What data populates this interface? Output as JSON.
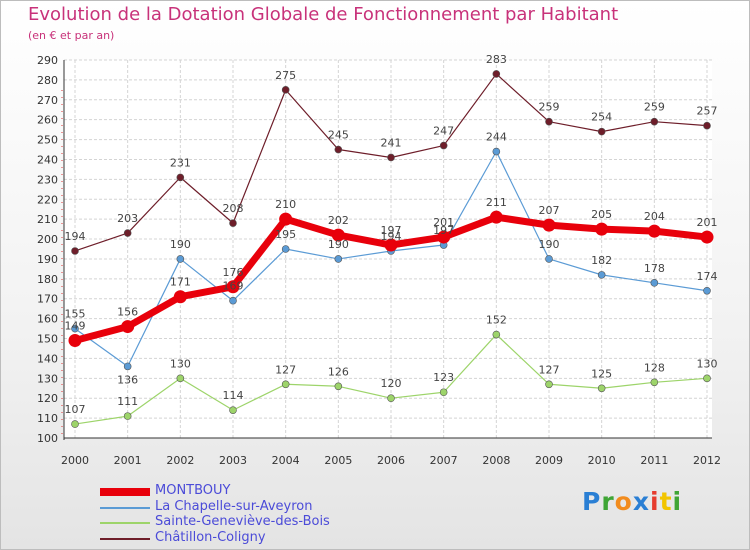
{
  "header": {
    "title": "Evolution de la Dotation Globale de Fonctionnement par Habitant",
    "subtitle": "(en € et par an)"
  },
  "chart_data": {
    "type": "line",
    "title": "Evolution de la Dotation Globale de Fonctionnement par Habitant",
    "subtitle": "(en € et par an)",
    "xlabel": "",
    "ylabel": "",
    "x": [
      "2000",
      "2001",
      "2002",
      "2003",
      "2004",
      "2005",
      "2006",
      "2007",
      "2008",
      "2009",
      "2010",
      "2011",
      "2012"
    ],
    "ylim": [
      100,
      290
    ],
    "ytick_step": 10,
    "grid": true,
    "legend_position": "bottom-left",
    "series": [
      {
        "name": "MONTBOUY",
        "color": "#e8000b",
        "values": [
          149,
          156,
          171,
          176,
          210,
          202,
          197,
          201,
          211,
          207,
          205,
          204,
          201
        ]
      },
      {
        "name": "La Chapelle-sur-Aveyron",
        "color": "#5b9bd5",
        "values": [
          155,
          136,
          190,
          169,
          195,
          190,
          194,
          197,
          244,
          190,
          182,
          178,
          174
        ]
      },
      {
        "name": "Sainte-Geneviève-des-Bois",
        "color": "#9dd46a",
        "values": [
          107,
          111,
          130,
          114,
          127,
          126,
          120,
          123,
          152,
          127,
          125,
          128,
          130
        ]
      },
      {
        "name": "Châtillon-Coligny",
        "color": "#6e1e2a",
        "values": [
          194,
          203,
          231,
          208,
          275,
          245,
          241,
          247,
          283,
          259,
          254,
          259,
          257
        ]
      }
    ]
  },
  "logo": {
    "letters": [
      "P",
      "r",
      "o",
      "x",
      "i",
      "t",
      "i"
    ],
    "colors": [
      "#2a7fd4",
      "#3fa535",
      "#f28c1e",
      "#2a7fd4",
      "#e63c2e",
      "#f2c500",
      "#3fa535"
    ]
  }
}
